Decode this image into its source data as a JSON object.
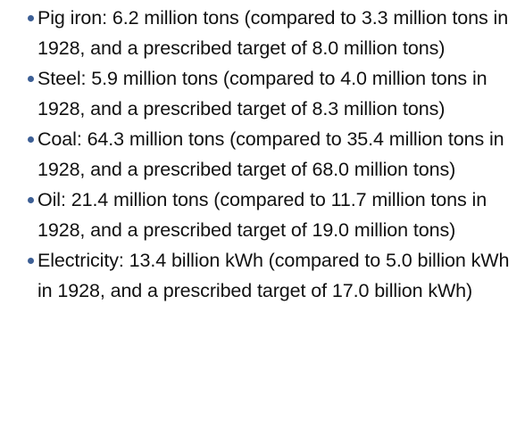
{
  "items": [
    {
      "text": "Pig iron: 6.2 million tons (compared to 3.3 million tons in 1928, and a prescribed target of 8.0 million tons)"
    },
    {
      "text": "Steel: 5.9 million tons (compared to 4.0 million tons in 1928, and a prescribed target of 8.3 million tons)"
    },
    {
      "text": "Coal: 64.3 million tons (compared to 35.4 million tons in 1928, and a prescribed target of 68.0 million tons)"
    },
    {
      "text": "Oil: 21.4 million tons (compared to 11.7 million tons in 1928, and a prescribed target of 19.0 million tons)"
    },
    {
      "text": "Electricity: 13.4 billion kWh (compared to 5.0 billion kWh in 1928, and a prescribed target of 17.0 billion kWh)"
    }
  ],
  "colors": {
    "bullet": "#3d5f95",
    "text": "#111111",
    "background": "#ffffff"
  },
  "icons": {
    "bullet": "bullet-dot-icon"
  }
}
